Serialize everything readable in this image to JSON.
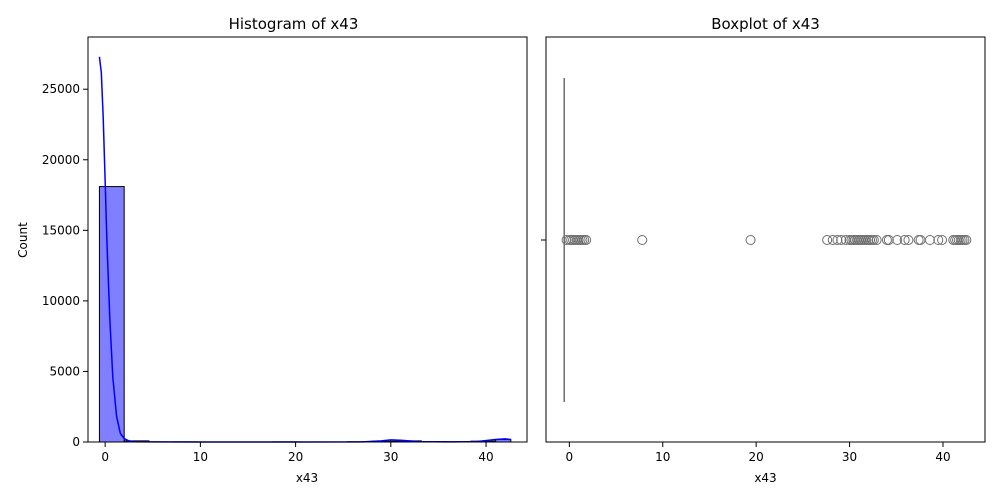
{
  "chart_data": [
    {
      "type": "histogram",
      "title": "Histogram of x43",
      "xlabel": "x43",
      "ylabel": "Count",
      "xlim": [
        -1.8,
        44.3
      ],
      "ylim": [
        0,
        28700
      ],
      "xticks": [
        0,
        10,
        20,
        30,
        40
      ],
      "yticks": [
        0,
        5000,
        10000,
        15000,
        20000,
        25000
      ],
      "bar_color": "#7f7fff",
      "kde_color": "#0000ff",
      "bins": [
        {
          "x0": -0.6,
          "x1": 2.0,
          "count": 18100
        },
        {
          "x0": 2.0,
          "x1": 4.6,
          "count": 80
        },
        {
          "x0": 4.6,
          "x1": 7.2,
          "count": 0
        },
        {
          "x0": 7.2,
          "x1": 9.8,
          "count": 10
        },
        {
          "x0": 9.8,
          "x1": 12.4,
          "count": 0
        },
        {
          "x0": 12.4,
          "x1": 15.0,
          "count": 0
        },
        {
          "x0": 15.0,
          "x1": 17.6,
          "count": 0
        },
        {
          "x0": 17.6,
          "x1": 20.2,
          "count": 10
        },
        {
          "x0": 20.2,
          "x1": 22.8,
          "count": 0
        },
        {
          "x0": 22.8,
          "x1": 25.4,
          "count": 0
        },
        {
          "x0": 25.4,
          "x1": 28.0,
          "count": 20
        },
        {
          "x0": 28.0,
          "x1": 30.6,
          "count": 60
        },
        {
          "x0": 30.6,
          "x1": 33.2,
          "count": 80
        },
        {
          "x0": 33.2,
          "x1": 35.8,
          "count": 30
        },
        {
          "x0": 35.8,
          "x1": 38.4,
          "count": 20
        },
        {
          "x0": 38.4,
          "x1": 41.0,
          "count": 60
        },
        {
          "x0": 41.0,
          "x1": 42.6,
          "count": 180
        }
      ],
      "kde": {
        "x": [
          -0.6,
          -0.4,
          -0.2,
          0.0,
          0.2,
          0.5,
          0.8,
          1.2,
          1.6,
          2.0,
          2.5,
          3.0,
          5,
          10,
          20,
          27,
          29,
          30,
          31,
          33,
          36,
          39,
          41,
          42,
          42.6
        ],
        "y": [
          27300,
          26200,
          23000,
          18600,
          14000,
          8600,
          4600,
          1800,
          600,
          250,
          80,
          20,
          5,
          0,
          0,
          10,
          80,
          150,
          120,
          30,
          10,
          30,
          180,
          220,
          180
        ]
      }
    },
    {
      "type": "boxplot",
      "title": "Boxplot of x43",
      "xlabel": "x43",
      "xlim": [
        -2.5,
        44.5
      ],
      "xticks": [
        0,
        10,
        20,
        30,
        40
      ],
      "box": {
        "q1": -0.6,
        "median": -0.55,
        "q3": -0.5,
        "whisker_low": -0.6,
        "whisker_high": -0.45
      },
      "color": "#6e6e6e",
      "outliers": [
        -0.3,
        0.0,
        0.2,
        0.4,
        0.6,
        0.8,
        1.0,
        1.2,
        1.4,
        1.6,
        1.8,
        7.8,
        19.4,
        27.6,
        28.2,
        28.7,
        29.1,
        29.6,
        30.0,
        30.2,
        30.4,
        30.6,
        30.8,
        31.0,
        31.2,
        31.4,
        31.6,
        31.8,
        32.0,
        32.2,
        32.4,
        32.6,
        32.9,
        34.0,
        34.2,
        35.1,
        35.9,
        36.3,
        37.4,
        37.6,
        38.6,
        39.5,
        39.9,
        41.1,
        41.3,
        41.5,
        41.7,
        41.9,
        42.1,
        42.3,
        42.5
      ]
    }
  ]
}
